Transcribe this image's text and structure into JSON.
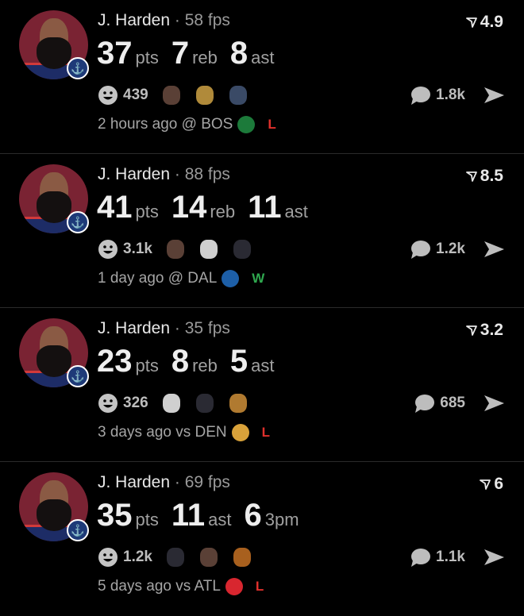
{
  "colors": {
    "loss": "#e0302c",
    "win": "#2fa84f",
    "background": "#000000"
  },
  "posts": [
    {
      "player": "J. Harden",
      "fps": "58 fps",
      "score": "4.9",
      "stats": [
        {
          "value": "37",
          "unit": "pts"
        },
        {
          "value": "7",
          "unit": "reb"
        },
        {
          "value": "8",
          "unit": "ast"
        }
      ],
      "reactions_count": "439",
      "reaction_icons": [
        "harden-emoji",
        "bald-face-emoji",
        "trophy-emoji"
      ],
      "comments": "1.8k",
      "time": "2 hours ago @ BOS",
      "opponent_logo": "celtics-logo",
      "opponent_color": "#1c7a3a",
      "result": "L"
    },
    {
      "player": "J. Harden",
      "fps": "88 fps",
      "score": "8.5",
      "stats": [
        {
          "value": "41",
          "unit": "pts"
        },
        {
          "value": "14",
          "unit": "reb"
        },
        {
          "value": "11",
          "unit": "ast"
        }
      ],
      "reactions_count": "3.1k",
      "reaction_icons": [
        "harden-emoji",
        "goat-emoji",
        "hooded-emoji"
      ],
      "comments": "1.2k",
      "time": "1 day ago @ DAL",
      "opponent_logo": "mavericks-logo",
      "opponent_color": "#1d5fa8",
      "result": "W"
    },
    {
      "player": "J. Harden",
      "fps": "35 fps",
      "score": "3.2",
      "stats": [
        {
          "value": "23",
          "unit": "pts"
        },
        {
          "value": "8",
          "unit": "reb"
        },
        {
          "value": "5",
          "unit": "ast"
        }
      ],
      "reactions_count": "326",
      "reaction_icons": [
        "goat-emoji",
        "hooded-emoji",
        "monkey-emoji"
      ],
      "comments": "685",
      "time": "3 days ago vs DEN",
      "opponent_logo": "nuggets-logo",
      "opponent_color": "#d9a23a",
      "result": "L"
    },
    {
      "player": "J. Harden",
      "fps": "69 fps",
      "score": "6",
      "stats": [
        {
          "value": "35",
          "unit": "pts"
        },
        {
          "value": "11",
          "unit": "ast"
        },
        {
          "value": "6",
          "unit": "3pm"
        }
      ],
      "reactions_count": "1.2k",
      "reaction_icons": [
        "hooded-emoji",
        "harden-emoji",
        "cake-emoji"
      ],
      "comments": "1.1k",
      "time": "5 days ago vs ATL",
      "opponent_logo": "hawks-logo",
      "opponent_color": "#d8262f",
      "result": "L"
    }
  ]
}
